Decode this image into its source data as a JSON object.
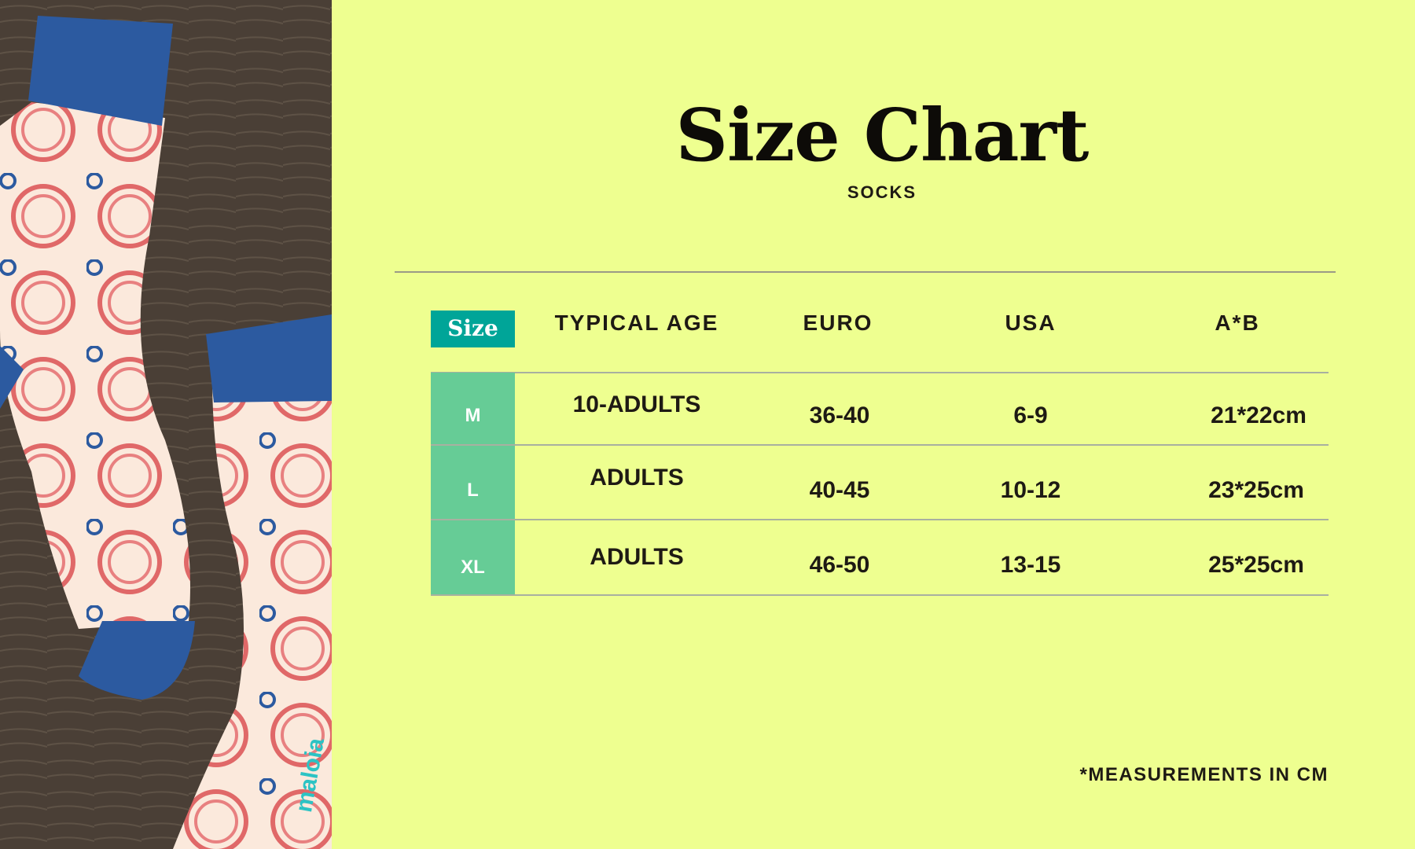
{
  "title": "Size Chart",
  "subtitle": "SOCKS",
  "brand_text": "maloia",
  "colors": {
    "background": "#eeff90",
    "header_size_bg": "#00a598",
    "size_column_bg": "#66cc96",
    "sock_cuff": "#2c5aa0",
    "sock_body": "#fbe9dc",
    "pattern": "#e06868",
    "wood": "#4a3f36"
  },
  "table": {
    "headers": [
      "Size",
      "TYPICAL AGE",
      "EURO",
      "USA",
      "A*B"
    ],
    "rows": [
      {
        "size": "M",
        "age": "10-ADULTS",
        "euro": "36-40",
        "usa": "6-9",
        "ab": "21*22cm"
      },
      {
        "size": "L",
        "age": "ADULTS",
        "euro": "40-45",
        "usa": "10-12",
        "ab": "23*25cm"
      },
      {
        "size": "XL",
        "age": "ADULTS",
        "euro": "46-50",
        "usa": "13-15",
        "ab": "25*25cm"
      }
    ]
  },
  "footnote": "*MEASUREMENTS IN CM"
}
